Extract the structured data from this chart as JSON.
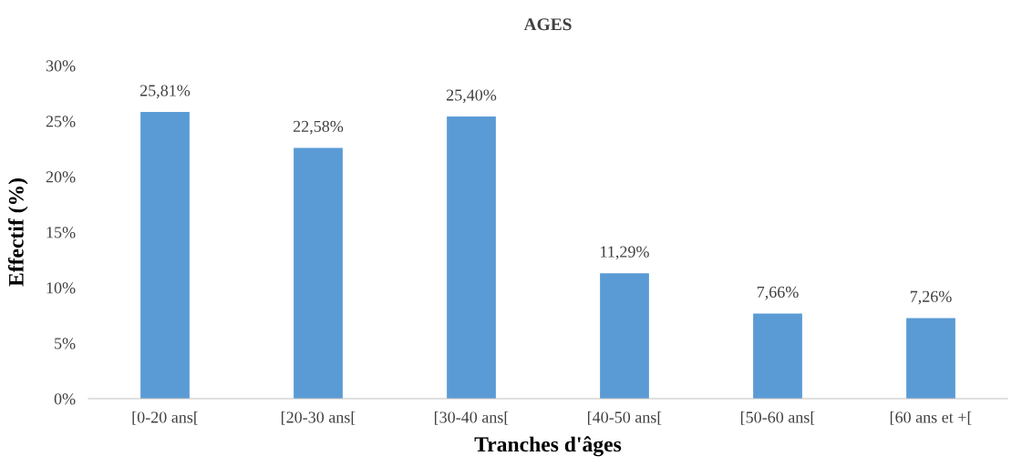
{
  "chart_data": {
    "type": "bar",
    "title": "AGES",
    "xlabel": "Tranches d'âges",
    "ylabel": "Effectif (%)",
    "categories": [
      "[0-20 ans[",
      "[20-30 ans[",
      "[30-40 ans[",
      "[40-50 ans[",
      "[50-60 ans[",
      "[60 ans et +["
    ],
    "values": [
      25.81,
      22.58,
      25.4,
      11.29,
      7.66,
      7.26
    ],
    "value_labels": [
      "25,81%",
      "22,58%",
      "25,40%",
      "11,29%",
      "7,66%",
      "7,26%"
    ],
    "color": "#5b9bd5",
    "ylim": [
      0,
      30
    ],
    "yticks": [
      {
        "value": 0,
        "label": "0%"
      },
      {
        "value": 5,
        "label": "5%"
      },
      {
        "value": 10,
        "label": "10%"
      },
      {
        "value": 15,
        "label": "15%"
      },
      {
        "value": 20,
        "label": "20%"
      },
      {
        "value": 25,
        "label": "25%"
      },
      {
        "value": 30,
        "label": "30%"
      }
    ],
    "grid": false,
    "legend": false
  }
}
